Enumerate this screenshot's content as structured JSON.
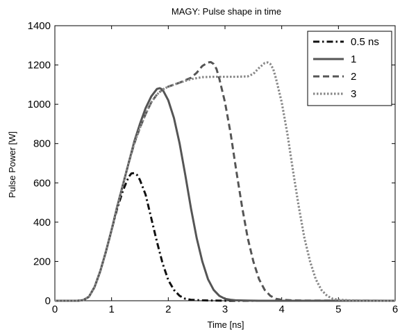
{
  "chart_data": {
    "type": "line",
    "title": "MAGY: Pulse shape in time",
    "xlabel": "Time [ns]",
    "ylabel": "Pulse Power [W]",
    "xlim": [
      0,
      6
    ],
    "ylim": [
      0,
      1400
    ],
    "x_ticks": [
      0,
      1,
      2,
      3,
      4,
      5,
      6
    ],
    "y_ticks": [
      0,
      200,
      400,
      600,
      800,
      1000,
      1200,
      1400
    ],
    "grid": false,
    "legend_position": "top-right",
    "series": [
      {
        "name": "0.5 ns",
        "style": "dashdot",
        "color": "#111111",
        "x": [
          0,
          0.4,
          0.5,
          0.6,
          0.7,
          0.8,
          0.9,
          1.0,
          1.1,
          1.2,
          1.3,
          1.35,
          1.4,
          1.45,
          1.5,
          1.6,
          1.7,
          1.8,
          1.9,
          2.0,
          2.1,
          2.2,
          2.3,
          2.4,
          2.6,
          2.8,
          3.0,
          6.0
        ],
        "y": [
          0,
          0,
          3,
          20,
          70,
          150,
          250,
          360,
          470,
          560,
          630,
          648,
          650,
          640,
          615,
          540,
          420,
          300,
          190,
          105,
          55,
          25,
          10,
          5,
          2,
          1,
          0,
          0
        ]
      },
      {
        "name": "1",
        "style": "solid",
        "color": "#555555",
        "x": [
          0,
          0.4,
          0.5,
          0.6,
          0.7,
          0.8,
          0.9,
          1.0,
          1.1,
          1.2,
          1.3,
          1.4,
          1.5,
          1.6,
          1.7,
          1.8,
          1.85,
          1.9,
          2.0,
          2.1,
          2.2,
          2.3,
          2.4,
          2.5,
          2.6,
          2.7,
          2.8,
          2.9,
          3.0,
          3.1,
          3.2,
          3.4,
          3.6,
          6.0
        ],
        "y": [
          0,
          0,
          3,
          20,
          70,
          150,
          250,
          360,
          480,
          590,
          700,
          810,
          900,
          980,
          1040,
          1078,
          1082,
          1075,
          1020,
          930,
          800,
          640,
          470,
          320,
          200,
          110,
          55,
          25,
          10,
          5,
          2,
          1,
          0,
          0
        ]
      },
      {
        "name": "2",
        "style": "dashed",
        "color": "#555555",
        "x": [
          0,
          0.4,
          0.5,
          0.6,
          0.7,
          0.8,
          0.9,
          1.0,
          1.1,
          1.2,
          1.3,
          1.4,
          1.5,
          1.6,
          1.7,
          1.8,
          1.9,
          2.0,
          2.2,
          2.4,
          2.5,
          2.6,
          2.7,
          2.75,
          2.8,
          2.85,
          2.9,
          3.0,
          3.1,
          3.2,
          3.3,
          3.4,
          3.5,
          3.6,
          3.7,
          3.8,
          3.9,
          4.0,
          4.2,
          4.4,
          6.0
        ],
        "y": [
          0,
          0,
          3,
          20,
          70,
          150,
          250,
          360,
          480,
          590,
          700,
          800,
          880,
          950,
          1010,
          1050,
          1075,
          1090,
          1110,
          1135,
          1160,
          1195,
          1213,
          1215,
          1205,
          1180,
          1130,
          1010,
          850,
          660,
          480,
          320,
          200,
          110,
          55,
          25,
          10,
          5,
          2,
          1,
          0
        ]
      },
      {
        "name": "3",
        "style": "dotted",
        "color": "#888888",
        "x": [
          0,
          0.4,
          0.5,
          0.6,
          0.7,
          0.8,
          0.9,
          1.0,
          1.1,
          1.2,
          1.3,
          1.4,
          1.5,
          1.6,
          1.7,
          1.8,
          1.9,
          2.0,
          2.2,
          2.4,
          2.6,
          2.8,
          3.0,
          3.2,
          3.4,
          3.5,
          3.6,
          3.7,
          3.75,
          3.8,
          3.85,
          3.9,
          4.0,
          4.1,
          4.2,
          4.3,
          4.4,
          4.5,
          4.6,
          4.7,
          4.8,
          4.9,
          5.0,
          5.2,
          5.4,
          6.0
        ],
        "y": [
          0,
          0,
          3,
          20,
          70,
          150,
          250,
          360,
          480,
          590,
          700,
          800,
          880,
          950,
          1010,
          1050,
          1075,
          1090,
          1110,
          1128,
          1138,
          1140,
          1140,
          1140,
          1142,
          1155,
          1185,
          1210,
          1213,
          1205,
          1180,
          1130,
          1010,
          850,
          660,
          480,
          320,
          200,
          110,
          55,
          25,
          10,
          5,
          2,
          1,
          0
        ]
      }
    ]
  }
}
